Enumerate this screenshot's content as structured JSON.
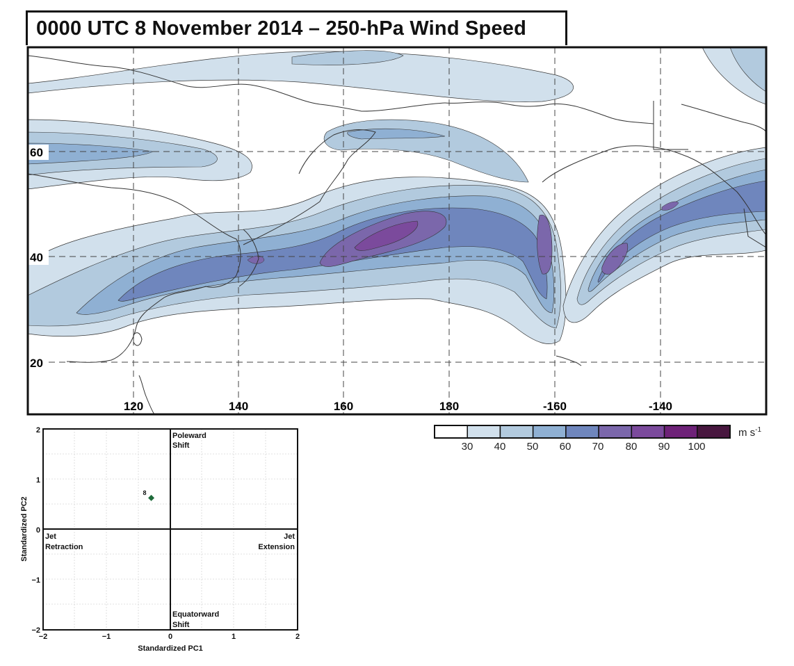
{
  "title": "0000 UTC 8 November 2014 – 250-hPa Wind Speed",
  "map": {
    "lat_labels": [
      "60",
      "40",
      "20"
    ],
    "lon_labels": [
      "120",
      "140",
      "160",
      "180",
      "-160",
      "-140"
    ]
  },
  "colorbar": {
    "ticks": [
      "30",
      "40",
      "50",
      "60",
      "70",
      "80",
      "90",
      "100"
    ],
    "unit_main": "m s",
    "unit_exp": "-1",
    "colors": [
      "#ffffff",
      "#d1e0ec",
      "#b2cade",
      "#8fb0d3",
      "#6f86bd",
      "#7b67ab",
      "#7b4a9c",
      "#6e2278",
      "#48173f"
    ]
  },
  "pc_plot": {
    "xlabel": "Standardized PC1",
    "ylabel": "Standardized PC2",
    "x_ticks": [
      "−2",
      "−1",
      "0",
      "1",
      "2"
    ],
    "y_ticks": [
      "2",
      "1",
      "0",
      "−1",
      "−2"
    ],
    "quadrants": {
      "poleward_1": "Poleward",
      "poleward_2": "Shift",
      "equatorward_1": "Equatorward",
      "equatorward_2": "Shift",
      "retraction_1": "Jet",
      "retraction_2": "Retraction",
      "extension_1": "Jet",
      "extension_2": "Extension"
    },
    "point": {
      "label": "8",
      "pc1": -0.3,
      "pc2": 0.62,
      "color": "#1e6b3a"
    }
  }
}
